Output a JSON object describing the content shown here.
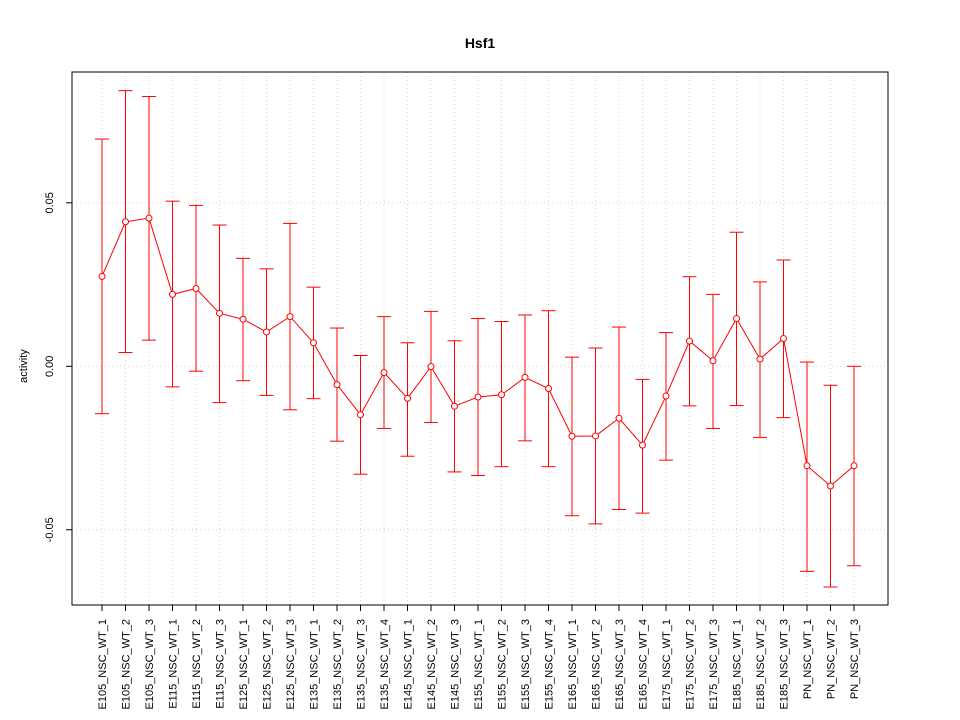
{
  "chart_data": {
    "type": "line",
    "title": "Hsf1",
    "xlabel": "",
    "ylabel": "activity",
    "ylim": [
      -0.073,
      0.09
    ],
    "yticks": [
      -0.05,
      0.0,
      0.05
    ],
    "ytick_labels": [
      "-0.05",
      "0.00",
      "0.05"
    ],
    "grid": true,
    "error_bars": true,
    "color": "#ff0000",
    "categories": [
      "E105_NSC_WT_1",
      "E105_NSC_WT_2",
      "E105_NSC_WT_3",
      "E115_NSC_WT_1",
      "E115_NSC_WT_2",
      "E115_NSC_WT_3",
      "E125_NSC_WT_1",
      "E125_NSC_WT_2",
      "E125_NSC_WT_3",
      "E135_NSC_WT_1",
      "E135_NSC_WT_2",
      "E135_NSC_WT_3",
      "E135_NSC_WT_4",
      "E145_NSC_WT_1",
      "E145_NSC_WT_2",
      "E145_NSC_WT_3",
      "E155_NSC_WT_1",
      "E155_NSC_WT_2",
      "E155_NSC_WT_3",
      "E155_NSC_WT_4",
      "E165_NSC_WT_1",
      "E165_NSC_WT_2",
      "E165_NSC_WT_3",
      "E165_NSC_WT_4",
      "E175_NSC_WT_1",
      "E175_NSC_WT_2",
      "E175_NSC_WT_3",
      "E185_NSC_WT_1",
      "E185_NSC_WT_2",
      "E185_NSC_WT_3",
      "PN_NSC_WT_1",
      "PN_NSC_WT_2",
      "PN_NSC_WT_3"
    ],
    "values": [
      0.0275,
      0.0442,
      0.0453,
      0.022,
      0.0238,
      0.0162,
      0.0144,
      0.0105,
      0.0152,
      0.0072,
      -0.0056,
      -0.0148,
      -0.0019,
      -0.0098,
      -0.0001,
      -0.0122,
      -0.0094,
      -0.0087,
      -0.0034,
      -0.0068,
      -0.0214,
      -0.0213,
      -0.0159,
      -0.0241,
      -0.0091,
      0.0077,
      0.0017,
      0.0146,
      0.0022,
      0.0085,
      -0.0304,
      -0.0366,
      -0.0304
    ],
    "upper": [
      0.0695,
      0.0843,
      0.0825,
      0.0505,
      0.0492,
      0.0432,
      0.033,
      0.0298,
      0.0437,
      0.0242,
      0.0117,
      0.0033,
      0.0152,
      0.0072,
      0.0168,
      0.0078,
      0.0146,
      0.0137,
      0.0157,
      0.017,
      0.0028,
      0.0056,
      0.012,
      -0.004,
      0.0103,
      0.0274,
      0.022,
      0.041,
      0.0258,
      0.0325,
      0.0013,
      -0.0058,
      0.0
    ],
    "lower": [
      -0.0145,
      0.0042,
      0.008,
      -0.0063,
      -0.0015,
      -0.0111,
      -0.0044,
      -0.0089,
      -0.0133,
      -0.0099,
      -0.0229,
      -0.033,
      -0.019,
      -0.0275,
      -0.0172,
      -0.0323,
      -0.0334,
      -0.0307,
      -0.0228,
      -0.0307,
      -0.0457,
      -0.0482,
      -0.0438,
      -0.0449,
      -0.0287,
      -0.0121,
      -0.019,
      -0.012,
      -0.0218,
      -0.0157,
      -0.0627,
      -0.0675,
      -0.061
    ]
  }
}
